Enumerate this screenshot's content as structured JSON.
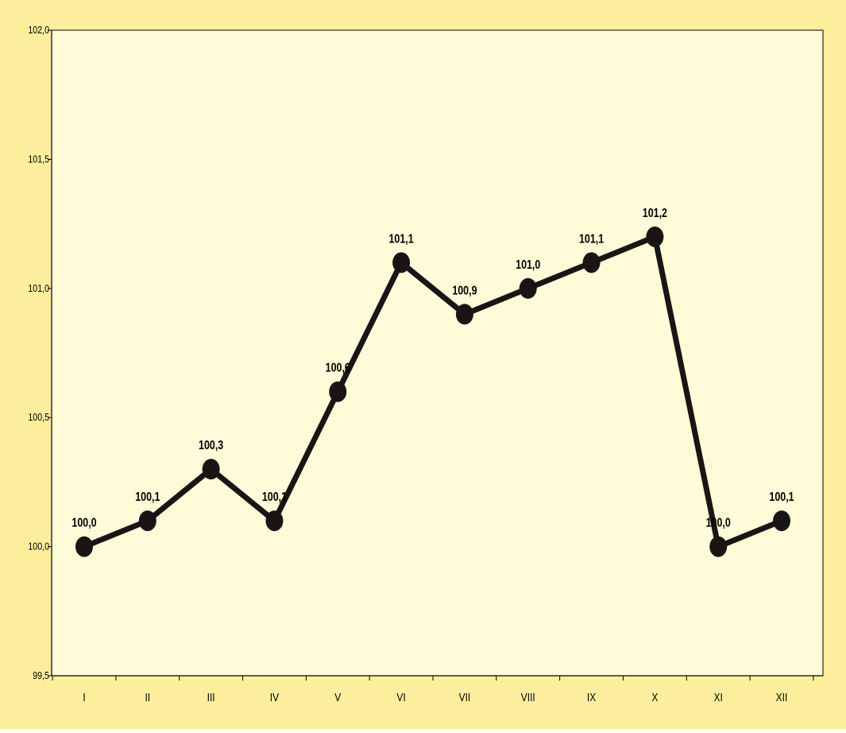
{
  "chart_data": {
    "type": "line",
    "categories": [
      "I",
      "II",
      "III",
      "IV",
      "V",
      "VI",
      "VII",
      "VIII",
      "IX",
      "X",
      "XI",
      "XII"
    ],
    "values": [
      100.0,
      100.1,
      100.3,
      100.1,
      100.6,
      101.1,
      100.9,
      101.0,
      101.1,
      101.2,
      100.0,
      100.1
    ],
    "data_labels": [
      "100,0",
      "100,1",
      "100,3",
      "100,1",
      "100,6",
      "101,1",
      "100,9",
      "101,0",
      "101,1",
      "101,2",
      "100,0",
      "100,1"
    ],
    "ylim": [
      99.5,
      102.0
    ],
    "yticks": [
      99.5,
      100.0,
      100.5,
      101.0,
      101.5,
      102.0
    ],
    "ytick_labels": [
      "99,5",
      "100,0",
      "100,5",
      "101,0",
      "101,5",
      "102,0"
    ],
    "grid": false,
    "legend": "none",
    "colors": {
      "outer_background": "#fdee9e",
      "plot_background": "#fffbd8",
      "line": "#1a1515",
      "marker": "#1a1515",
      "axis": "#000000",
      "text": "#000000"
    }
  }
}
